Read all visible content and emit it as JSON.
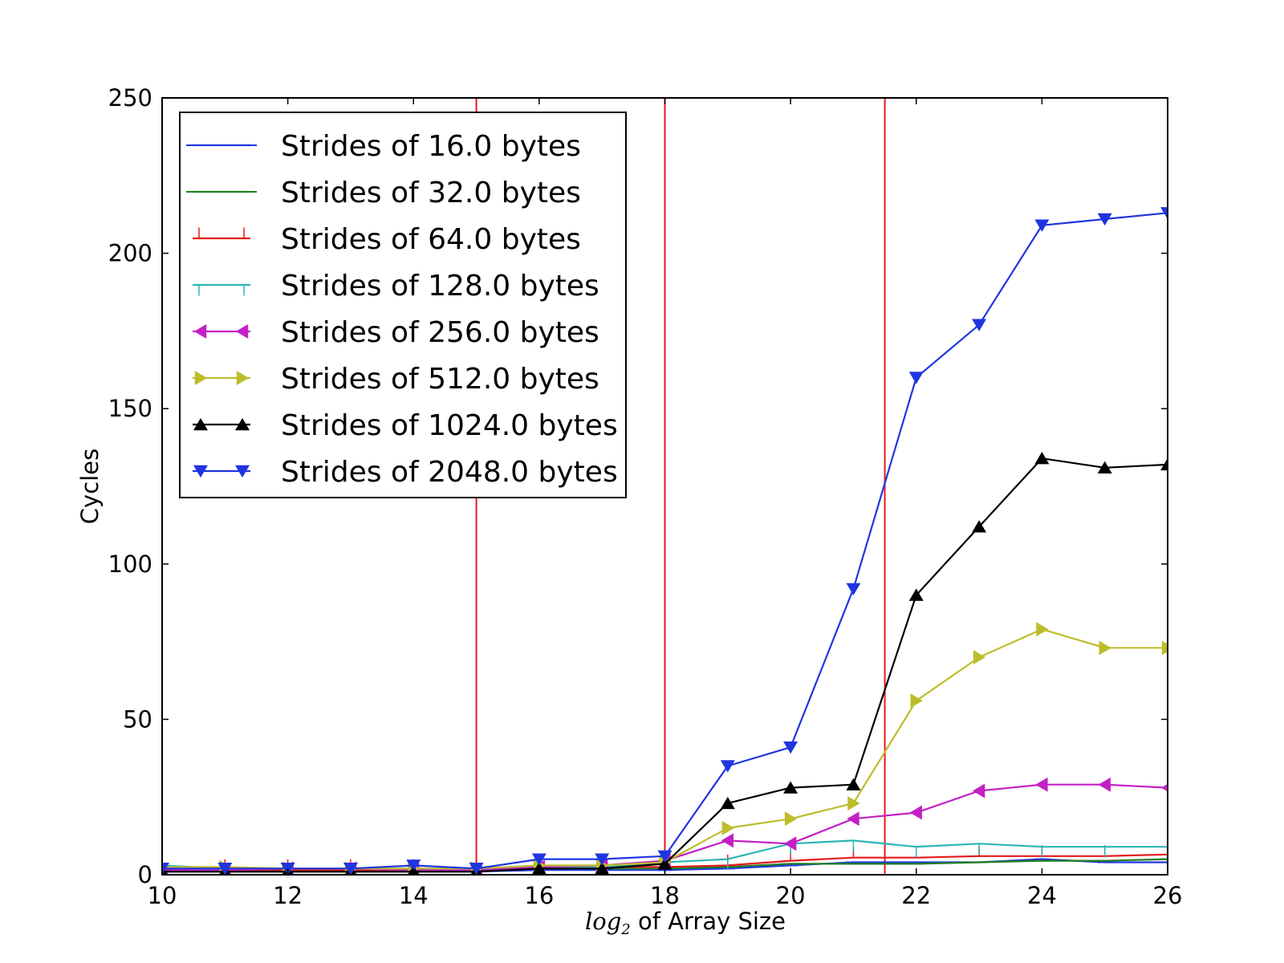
{
  "chart_data": {
    "type": "line",
    "title": "",
    "xlabel": {
      "math": "log",
      "subscript": "2",
      "text": " of Array Size"
    },
    "ylabel": "Cycles",
    "xlim": [
      10,
      26
    ],
    "ylim": [
      0,
      250
    ],
    "xticks": [
      10,
      12,
      14,
      16,
      18,
      20,
      22,
      24,
      26
    ],
    "yticks": [
      0,
      50,
      100,
      150,
      200,
      250
    ],
    "x": [
      10,
      11,
      12,
      13,
      14,
      15,
      16,
      17,
      18,
      19,
      20,
      21,
      22,
      23,
      24,
      25,
      26
    ],
    "grid": false,
    "legend_position": "upper-left",
    "vertical_lines": [
      15,
      18,
      21.5
    ],
    "vertical_line_color": "#e41a1c",
    "series": [
      {
        "name": "Strides of 16.0 bytes",
        "color": "#1f35e0",
        "marker": "hline",
        "values": [
          1.0,
          1.0,
          1.0,
          1.0,
          1.0,
          1.0,
          1.5,
          1.5,
          1.5,
          2.0,
          3.0,
          4.0,
          4.0,
          4.0,
          5.0,
          4.0,
          4.0
        ]
      },
      {
        "name": "Strides of 32.0 bytes",
        "color": "#1f7f1f",
        "marker": "hline",
        "values": [
          1.0,
          1.0,
          1.0,
          1.0,
          1.0,
          1.0,
          2.0,
          2.0,
          2.0,
          2.5,
          3.5,
          3.5,
          3.5,
          4.0,
          4.5,
          4.5,
          5.0
        ]
      },
      {
        "name": "Strides of 64.0 bytes",
        "color": "#e41a1c",
        "marker": "tickup",
        "values": [
          1.5,
          1.5,
          1.5,
          1.5,
          1.5,
          1.5,
          2.5,
          2.5,
          2.5,
          3.0,
          4.5,
          5.5,
          5.5,
          6.0,
          6.0,
          6.0,
          6.5
        ]
      },
      {
        "name": "Strides of 128.0 bytes",
        "color": "#2cb5b5",
        "marker": "tickdown",
        "values": [
          3.0,
          2.0,
          2.0,
          2.0,
          2.0,
          2.0,
          2.5,
          2.5,
          4.0,
          5.0,
          10.0,
          11.0,
          9.0,
          10.0,
          9.0,
          9.0,
          9.0
        ]
      },
      {
        "name": "Strides of 256.0 bytes",
        "color": "#c41fc4",
        "marker": "tri-left",
        "values": [
          1.5,
          1.5,
          2.0,
          2.0,
          1.5,
          1.5,
          2.5,
          3.0,
          4.5,
          11.0,
          10.0,
          18.0,
          20.0,
          27.0,
          29.0,
          29.0,
          28.0
        ]
      },
      {
        "name": "Strides of 512.0 bytes",
        "color": "#bdbd2c",
        "marker": "tri-right",
        "values": [
          2.5,
          2.5,
          2.0,
          2.0,
          2.0,
          2.0,
          3.0,
          3.0,
          4.0,
          15.0,
          18.0,
          23.0,
          56.0,
          70.0,
          79.0,
          73.0,
          73.0
        ]
      },
      {
        "name": "Strides of 1024.0 bytes",
        "color": "#000000",
        "marker": "tri-up",
        "values": [
          1.0,
          1.0,
          1.0,
          1.0,
          1.0,
          1.0,
          2.0,
          2.0,
          3.5,
          23.0,
          28.0,
          29.0,
          90.0,
          112.0,
          134.0,
          131.0,
          132.0
        ]
      },
      {
        "name": "Strides of 2048.0 bytes",
        "color": "#1f35e0",
        "marker": "tri-down",
        "values": [
          2.0,
          2.0,
          2.0,
          2.0,
          3.0,
          2.0,
          5.0,
          5.0,
          6.0,
          35.0,
          41.0,
          92.0,
          160.0,
          177.0,
          209.0,
          211.0,
          213.0
        ]
      }
    ]
  }
}
